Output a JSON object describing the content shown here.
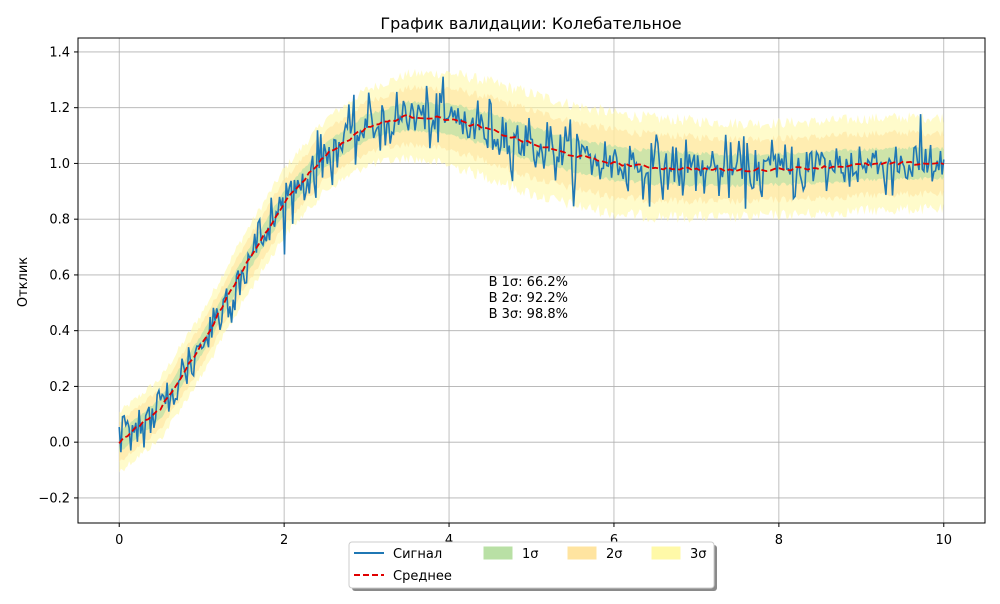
{
  "chart_data": {
    "type": "line",
    "title": "График валидации: Колебательное",
    "xlabel": "",
    "ylabel": "Отклик",
    "xlim": [
      -0.5,
      10.5
    ],
    "ylim": [
      -0.29,
      1.45
    ],
    "xticks": [
      0,
      2,
      4,
      6,
      8,
      10
    ],
    "xtick_labels": [
      "0",
      "2",
      "4",
      "6",
      "8",
      "10"
    ],
    "yticks": [
      -0.2,
      0.0,
      0.2,
      0.4,
      0.6,
      0.8,
      1.0,
      1.2,
      1.4
    ],
    "ytick_labels": [
      "−0.2",
      "0.0",
      "0.2",
      "0.4",
      "0.6",
      "0.8",
      "1.0",
      "1.2",
      "1.4"
    ],
    "grid": true,
    "legend_position": "bottom-center",
    "mean": {
      "x": [
        0,
        0.5,
        1.0,
        1.5,
        2.0,
        2.5,
        3.0,
        3.5,
        4.0,
        4.5,
        5.0,
        5.5,
        6.0,
        6.5,
        7.0,
        7.5,
        8.0,
        8.5,
        9.0,
        9.5,
        10.0
      ],
      "y": [
        0.0,
        0.12,
        0.35,
        0.62,
        0.86,
        1.03,
        1.13,
        1.17,
        1.16,
        1.12,
        1.07,
        1.03,
        1.0,
        0.985,
        0.98,
        0.975,
        0.98,
        0.985,
        0.995,
        1.0,
        1.0
      ]
    },
    "band_halfwidth": {
      "x": [
        0,
        2,
        3,
        4,
        5,
        6,
        8,
        10
      ],
      "sigma": [
        0.035,
        0.04,
        0.045,
        0.055,
        0.06,
        0.06,
        0.055,
        0.055
      ]
    },
    "signal_noise": 0.06,
    "signal_points": 500,
    "series": [
      {
        "name": "Сигнал",
        "color": "#1f77b4",
        "style": "solid"
      },
      {
        "name": "Среднее",
        "color": "#e00000",
        "style": "dashed"
      }
    ],
    "bands": [
      {
        "name": "1σ",
        "color": "#b9e0a5",
        "opacity": 0.7
      },
      {
        "name": "2σ",
        "color": "#ffe4a0",
        "opacity": 0.6
      },
      {
        "name": "3σ",
        "color": "#fff9a8",
        "opacity": 0.6
      }
    ],
    "annotations": [
      "В 1σ: 66.2%",
      "В 2σ: 92.2%",
      "В 3σ: 98.8%"
    ],
    "annotation_anchor": {
      "x": 4.48,
      "y": 0.56
    }
  }
}
